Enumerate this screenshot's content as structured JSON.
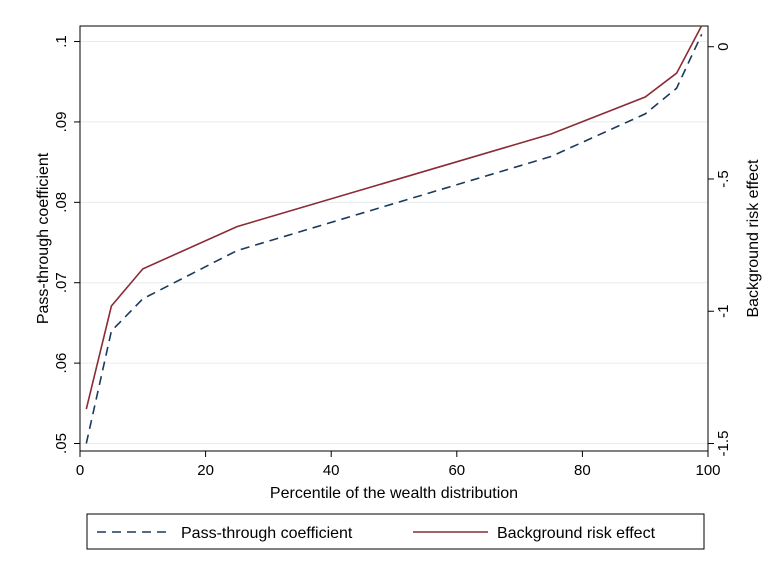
{
  "chart_data": {
    "type": "line",
    "title": "",
    "xlabel": "Percentile of the wealth distribution",
    "ylabel_left": "Pass-through coefficient",
    "ylabel_right": "Background risk effect",
    "xlim": [
      0,
      100
    ],
    "ylim_left": [
      0.05,
      0.101
    ],
    "ylim_right": [
      -1.5,
      0.05
    ],
    "x_ticks": [
      "0",
      "20",
      "40",
      "60",
      "80",
      "100"
    ],
    "x_tick_values": [
      0,
      20,
      40,
      60,
      80,
      100
    ],
    "y_left_ticks": [
      ".05",
      ".06",
      ".07",
      ".08",
      ".09",
      ".1"
    ],
    "y_left_tick_values": [
      0.05,
      0.06,
      0.07,
      0.08,
      0.09,
      0.1
    ],
    "y_right_ticks": [
      "-1.5",
      "-1",
      "-.5",
      "0"
    ],
    "y_right_tick_values": [
      -1.5,
      -1,
      -0.5,
      0
    ],
    "grid": true,
    "legend_position": "bottom",
    "series": [
      {
        "name": "Pass-through coefficient",
        "axis": "left",
        "style": "dashed",
        "color": "#1a3a5c",
        "x": [
          1,
          5,
          10,
          25,
          75,
          90,
          95,
          99
        ],
        "y": [
          0.05,
          0.064,
          0.068,
          0.074,
          0.0857,
          0.091,
          0.0942,
          0.1009
        ]
      },
      {
        "name": "Background risk effect",
        "axis": "right",
        "style": "solid",
        "color": "#8b2b35",
        "x": [
          1,
          5,
          10,
          25,
          75,
          90,
          95,
          99
        ],
        "y": [
          -1.37,
          -0.98,
          -0.84,
          -0.68,
          -0.33,
          -0.19,
          -0.1,
          0.08
        ]
      }
    ]
  }
}
